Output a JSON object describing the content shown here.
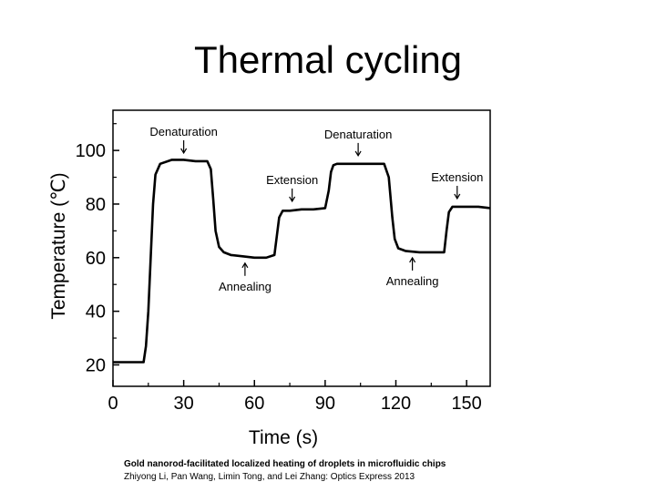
{
  "slide": {
    "title": "Thermal cycling",
    "caption_title": "Gold nanorod-facilitated localized heating of droplets in microfluidic chips",
    "caption_authors": "Zhiyong Li, Pan Wang, Limin Tong, and Lei Zhang: Optics Express 2013"
  },
  "chart_data": {
    "type": "line",
    "title": "",
    "xlabel": "Time (s)",
    "ylabel": "Temperature (℃)",
    "xlim": [
      0,
      160
    ],
    "ylim": [
      12,
      115
    ],
    "xticks": [
      0,
      30,
      60,
      90,
      120,
      150
    ],
    "yticks": [
      20,
      40,
      60,
      80,
      100
    ],
    "grid": false,
    "line_color": "#000000",
    "series": [
      {
        "name": "Temperature",
        "x": [
          0,
          13,
          14,
          15,
          16,
          17,
          18,
          20,
          25,
          30,
          35,
          40,
          41.5,
          42.5,
          43.5,
          45,
          47,
          50,
          55,
          60,
          65,
          68.5,
          69.5,
          70.5,
          72,
          75,
          80,
          85,
          90,
          91.5,
          92.5,
          93.5,
          95,
          100,
          105,
          110,
          115,
          117,
          118.5,
          119.5,
          121,
          124,
          130,
          135,
          140.5,
          141.5,
          142.5,
          144,
          150,
          155,
          160
        ],
        "y": [
          21,
          21,
          27,
          40,
          60,
          80,
          91,
          95,
          96.5,
          96.5,
          96,
          96,
          93,
          82,
          70,
          64,
          62,
          61,
          60.5,
          60,
          60,
          61,
          68,
          75,
          77.5,
          77.5,
          78,
          78,
          78.5,
          85,
          92,
          94.5,
          95,
          95,
          95,
          95,
          95,
          90,
          75,
          67,
          63.5,
          62.5,
          62,
          62,
          62,
          70,
          77,
          79,
          79,
          79,
          78.5
        ]
      }
    ],
    "annotations": [
      {
        "text": "Denaturation",
        "x": 30,
        "y": 97
      },
      {
        "text": "Annealing",
        "x": 56,
        "y": 60
      },
      {
        "text": "Extension",
        "x": 76,
        "y": 79
      },
      {
        "text": "Denaturation",
        "x": 104,
        "y": 96
      },
      {
        "text": "Annealing",
        "x": 127,
        "y": 62
      },
      {
        "text": "Extension",
        "x": 146,
        "y": 80
      }
    ]
  }
}
